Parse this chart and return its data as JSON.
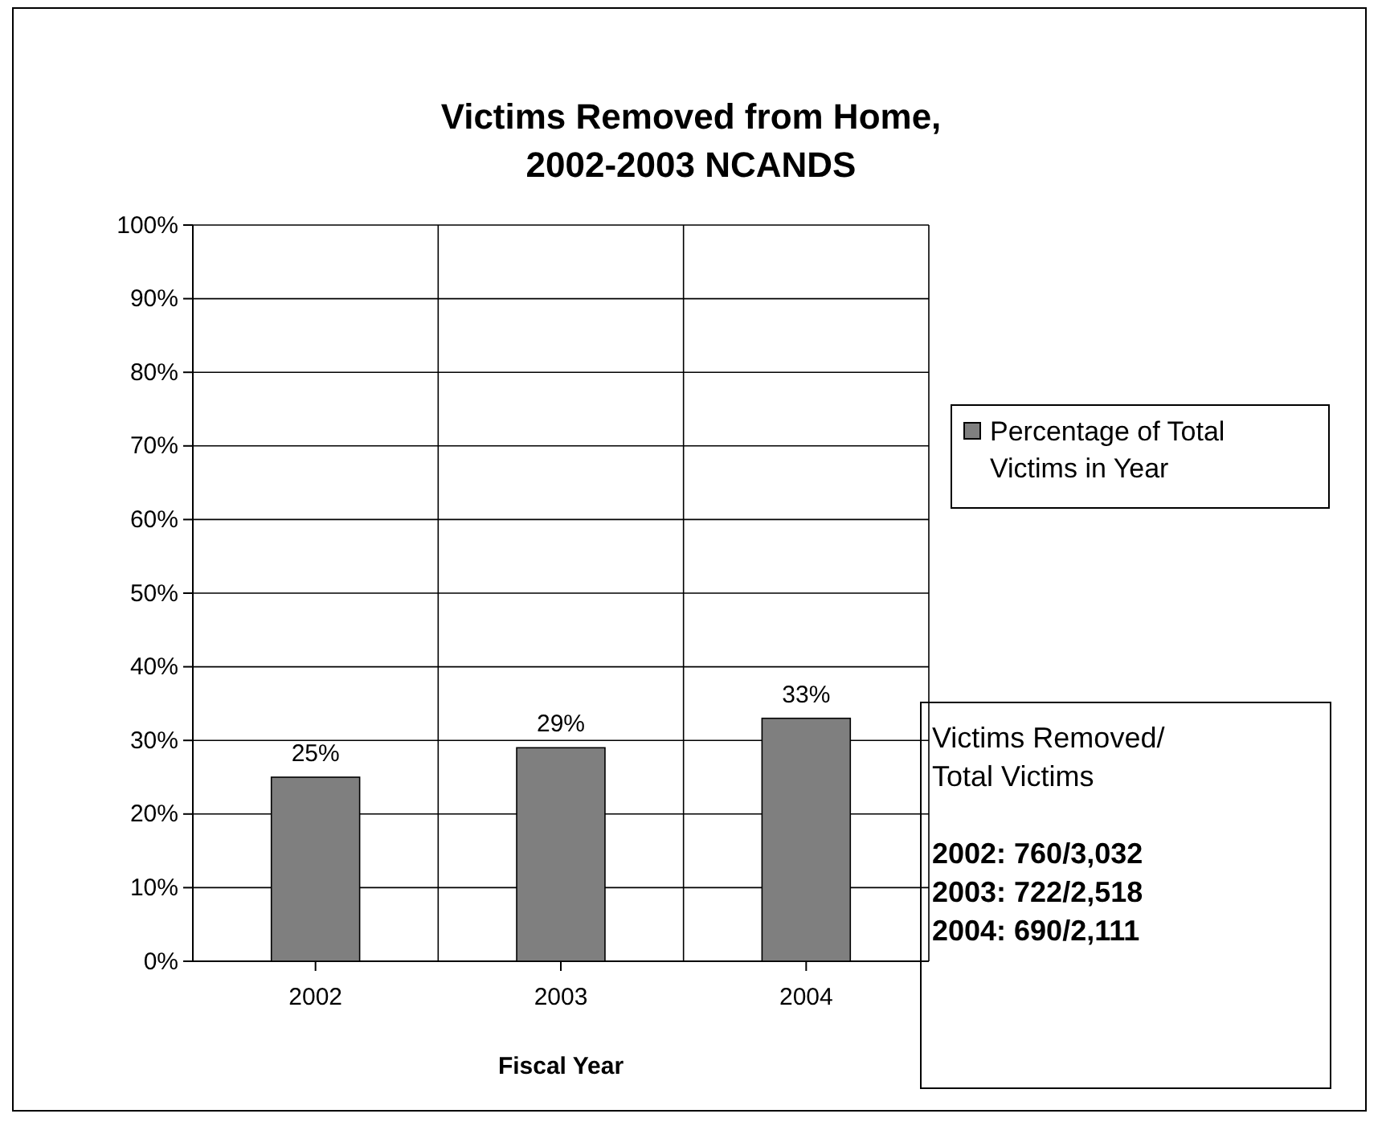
{
  "chart_data": {
    "type": "bar",
    "title": "Victims Removed from Home,\n2002-2003 NCANDS",
    "xlabel": "Fiscal Year",
    "categories": [
      "2002",
      "2003",
      "2004"
    ],
    "series": [
      {
        "name": "Percentage of Total Victims in Year",
        "color": "#7f7f7f",
        "values": [
          25,
          29,
          33
        ],
        "value_labels": [
          "25%",
          "29%",
          "33%"
        ]
      }
    ],
    "ylim": [
      0,
      100
    ],
    "yticks": [
      {
        "value": 0,
        "label": "0%"
      },
      {
        "value": 10,
        "label": "10%"
      },
      {
        "value": 20,
        "label": "20%"
      },
      {
        "value": 30,
        "label": "30%"
      },
      {
        "value": 40,
        "label": "40%"
      },
      {
        "value": 50,
        "label": "50%"
      },
      {
        "value": 60,
        "label": "60%"
      },
      {
        "value": 70,
        "label": "70%"
      },
      {
        "value": 80,
        "label": "80%"
      },
      {
        "value": 90,
        "label": "90%"
      },
      {
        "value": 100,
        "label": "100%"
      }
    ],
    "grid": true,
    "legend": "right",
    "annotations": [
      "Victims Removed/\nTotal Victims",
      "2002: 760/3,032\n2003: 722/2,518\n2004: 690/2,111"
    ]
  }
}
